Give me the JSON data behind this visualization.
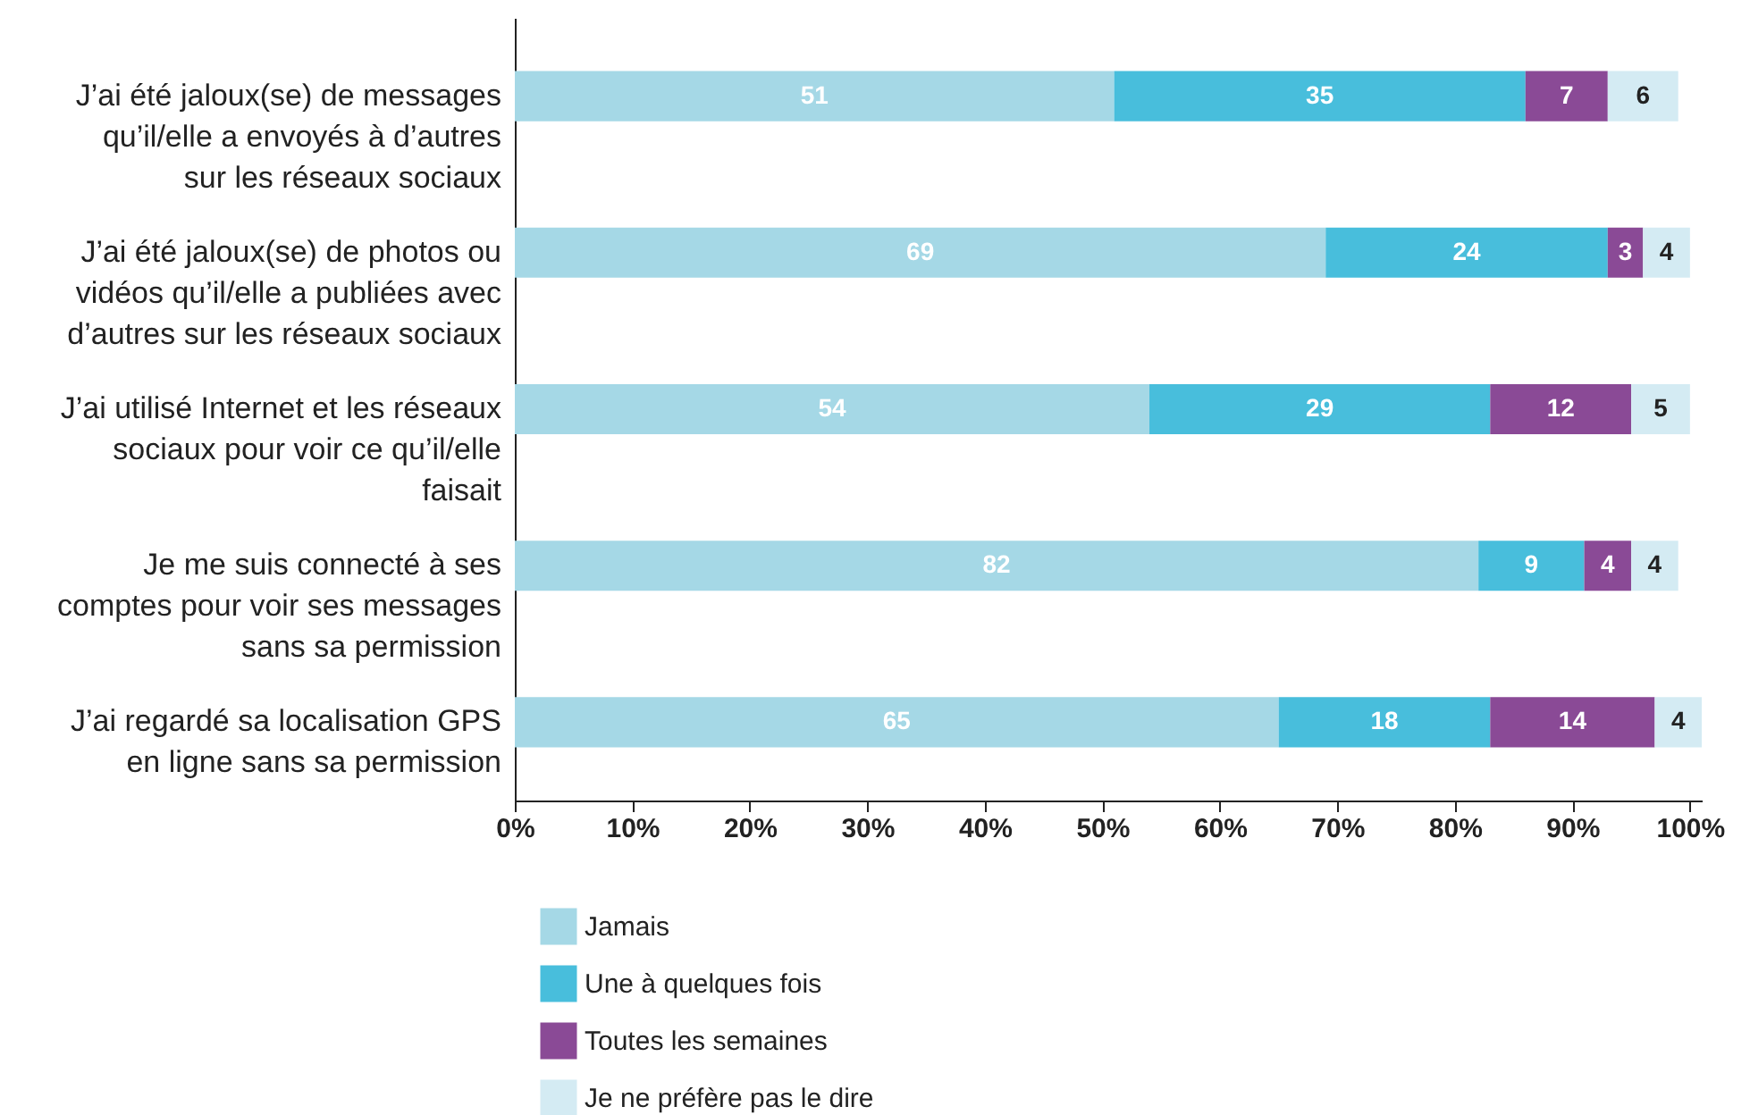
{
  "chart_data": {
    "type": "bar",
    "orientation": "horizontal",
    "stacked": true,
    "data_labels": true,
    "legend": "bottom",
    "grid": false,
    "categories": [
      "J’ai été jaloux(se) de messages qu’il/elle a envoyés à d’autres sur les réseaux sociaux",
      "J’ai été jaloux(se) de photos ou vidéos qu’il/elle a publiées avec d’autres sur les réseaux sociaux",
      "J’ai utilisé Internet et les réseaux sociaux pour voir ce qu’il/elle faisait",
      "Je me suis connecté à ses comptes pour voir ses messages sans sa permission",
      "J’ai regardé sa localisation GPS en ligne sans sa permission"
    ],
    "xlim": [
      0,
      101
    ],
    "xticks": [
      {
        "value": 0,
        "label": "0%"
      },
      {
        "value": 10,
        "label": "10%"
      },
      {
        "value": 20,
        "label": "20%"
      },
      {
        "value": 30,
        "label": "30%"
      },
      {
        "value": 40,
        "label": "40%"
      },
      {
        "value": 50,
        "label": "50%"
      },
      {
        "value": 60,
        "label": "60%"
      },
      {
        "value": 70,
        "label": "70%"
      },
      {
        "value": 80,
        "label": "80%"
      },
      {
        "value": 90,
        "label": "90%"
      },
      {
        "value": 100,
        "label": "100%"
      }
    ],
    "series": [
      {
        "name": "Jamais",
        "color": "#a5d8e6",
        "values": [
          51,
          69,
          54,
          82,
          65
        ]
      },
      {
        "name": "Une à quelques fois",
        "color": "#48bedc",
        "values": [
          35,
          24,
          29,
          9,
          18
        ]
      },
      {
        "name": "Toutes les semaines",
        "color": "#8a4a96",
        "values": [
          7,
          3,
          12,
          4,
          14
        ]
      },
      {
        "name": "Je ne préfère pas le dire",
        "color": "#d4ebf3",
        "values": [
          6,
          4,
          5,
          4,
          4
        ]
      }
    ]
  }
}
